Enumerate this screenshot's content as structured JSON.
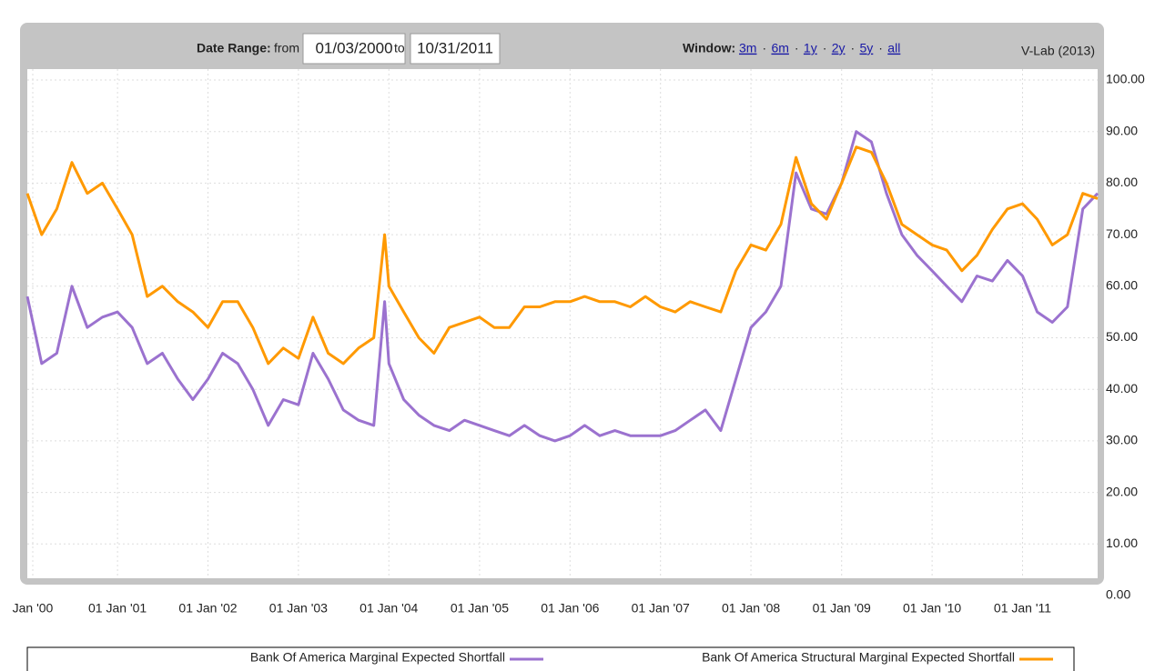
{
  "toolbar": {
    "date_range_label": "Date Range:",
    "from_label": "from",
    "from_date": "01/03/2000",
    "to_label": "to",
    "to_date": "10/31/2011",
    "window_label": "Window:",
    "windows": [
      "3m",
      "6m",
      "1y",
      "2y",
      "5y",
      "all"
    ],
    "separator": "·",
    "source": "V-Lab (2013)"
  },
  "chart_data": {
    "type": "line",
    "x": [
      "2000-01-03",
      "2000-03-01",
      "2000-05-01",
      "2000-07-01",
      "2000-09-01",
      "2000-11-01",
      "2001-01-01",
      "2001-03-01",
      "2001-05-01",
      "2001-07-01",
      "2001-09-01",
      "2001-11-01",
      "2002-01-01",
      "2002-03-01",
      "2002-05-01",
      "2002-07-01",
      "2002-09-01",
      "2002-11-01",
      "2003-01-01",
      "2003-03-01",
      "2003-05-01",
      "2003-07-01",
      "2003-09-01",
      "2003-11-01",
      "2003-12-15",
      "2004-01-01",
      "2004-03-01",
      "2004-05-01",
      "2004-07-01",
      "2004-09-01",
      "2004-11-01",
      "2005-01-01",
      "2005-03-01",
      "2005-05-01",
      "2005-07-01",
      "2005-09-01",
      "2005-11-01",
      "2006-01-01",
      "2006-03-01",
      "2006-05-01",
      "2006-07-01",
      "2006-09-01",
      "2006-11-01",
      "2007-01-01",
      "2007-03-01",
      "2007-05-01",
      "2007-07-01",
      "2007-09-01",
      "2007-11-01",
      "2008-01-01",
      "2008-03-01",
      "2008-05-01",
      "2008-07-01",
      "2008-09-01",
      "2008-11-01",
      "2009-01-01",
      "2009-03-01",
      "2009-05-01",
      "2009-07-01",
      "2009-09-01",
      "2009-11-01",
      "2010-01-01",
      "2010-03-01",
      "2010-05-01",
      "2010-07-01",
      "2010-09-01",
      "2010-11-01",
      "2011-01-01",
      "2011-03-01",
      "2011-05-01",
      "2011-07-01",
      "2011-09-01",
      "2011-10-31"
    ],
    "series": [
      {
        "name": "Bank Of America Marginal Expected Shortfall",
        "color": "#9b72cf",
        "values": [
          58,
          45,
          47,
          60,
          52,
          54,
          55,
          52,
          45,
          47,
          42,
          38,
          42,
          47,
          45,
          40,
          33,
          38,
          37,
          47,
          42,
          36,
          34,
          33,
          57,
          45,
          38,
          35,
          33,
          32,
          34,
          33,
          32,
          31,
          33,
          31,
          30,
          31,
          33,
          31,
          32,
          31,
          31,
          31,
          32,
          34,
          36,
          32,
          42,
          52,
          55,
          60,
          82,
          75,
          74,
          80,
          90,
          88,
          78,
          70,
          66,
          63,
          60,
          57,
          62,
          61,
          65,
          62,
          55,
          53,
          56,
          75,
          78
        ]
      },
      {
        "name": "Bank Of America Structural Marginal Expected Shortfall",
        "color": "#ff9900",
        "values": [
          78,
          70,
          75,
          84,
          78,
          80,
          75,
          70,
          58,
          60,
          57,
          55,
          52,
          57,
          57,
          52,
          45,
          48,
          46,
          54,
          47,
          45,
          48,
          50,
          70,
          60,
          55,
          50,
          47,
          52,
          53,
          54,
          52,
          52,
          56,
          56,
          57,
          57,
          58,
          57,
          57,
          56,
          58,
          56,
          55,
          57,
          56,
          55,
          63,
          68,
          67,
          72,
          85,
          76,
          73,
          80,
          87,
          86,
          80,
          72,
          70,
          68,
          67,
          63,
          66,
          71,
          75,
          76,
          73,
          68,
          70,
          78,
          77
        ]
      }
    ],
    "xlim": [
      "2000-01-03",
      "2011-10-31"
    ],
    "xticks": [
      {
        "value": "2000-01-01",
        "label": "Jan '00"
      },
      {
        "value": "2001-01-01",
        "label": "01 Jan '01"
      },
      {
        "value": "2002-01-01",
        "label": "01 Jan '02"
      },
      {
        "value": "2003-01-01",
        "label": "01 Jan '03"
      },
      {
        "value": "2004-01-01",
        "label": "01 Jan '04"
      },
      {
        "value": "2005-01-01",
        "label": "01 Jan '05"
      },
      {
        "value": "2006-01-01",
        "label": "01 Jan '06"
      },
      {
        "value": "2007-01-01",
        "label": "01 Jan '07"
      },
      {
        "value": "2008-01-01",
        "label": "01 Jan '08"
      },
      {
        "value": "2009-01-01",
        "label": "01 Jan '09"
      },
      {
        "value": "2010-01-01",
        "label": "01 Jan '10"
      },
      {
        "value": "2011-01-01",
        "label": "01 Jan '11"
      }
    ],
    "ylim": [
      0,
      100
    ],
    "yticks": [
      {
        "value": 0,
        "label": "0.00"
      },
      {
        "value": 10,
        "label": "10.00"
      },
      {
        "value": 20,
        "label": "20.00"
      },
      {
        "value": 30,
        "label": "30.00"
      },
      {
        "value": 40,
        "label": "40.00"
      },
      {
        "value": 50,
        "label": "50.00"
      },
      {
        "value": 60,
        "label": "60.00"
      },
      {
        "value": 70,
        "label": "70.00"
      },
      {
        "value": 80,
        "label": "80.00"
      },
      {
        "value": 90,
        "label": "90.00"
      },
      {
        "value": 100,
        "label": "100.00"
      }
    ],
    "grid": true
  }
}
